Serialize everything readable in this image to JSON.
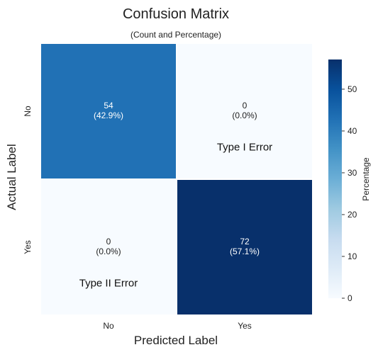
{
  "chart_data": {
    "type": "heatmap",
    "title": "Confusion Matrix",
    "subtitle": "(Count and Percentage)",
    "xlabel": "Predicted Label",
    "ylabel": "Actual Label",
    "x_categories": [
      "No",
      "Yes"
    ],
    "y_categories": [
      "No",
      "Yes"
    ],
    "cells": [
      {
        "actual": "No",
        "predicted": "No",
        "count": "54",
        "percent_label": "(42.9%)",
        "percent": 42.9,
        "annotation": ""
      },
      {
        "actual": "No",
        "predicted": "Yes",
        "count": "0",
        "percent_label": "(0.0%)",
        "percent": 0.0,
        "annotation": "Type I Error"
      },
      {
        "actual": "Yes",
        "predicted": "No",
        "count": "0",
        "percent_label": "(0.0%)",
        "percent": 0.0,
        "annotation": "Type II Error"
      },
      {
        "actual": "Yes",
        "predicted": "Yes",
        "count": "72",
        "percent_label": "(57.1%)",
        "percent": 57.1,
        "annotation": ""
      }
    ],
    "colorbar": {
      "label": "Percentage",
      "min": 0,
      "max": 57.1,
      "ticks": [
        0,
        10,
        20,
        30,
        40,
        50
      ],
      "colormap": "Blues",
      "colors": [
        "#f7fbff",
        "#deebf7",
        "#c6dbef",
        "#9ecae1",
        "#6baed6",
        "#4292c6",
        "#2171b5",
        "#08519c",
        "#08306b"
      ]
    },
    "grid": false,
    "legend": "right"
  }
}
